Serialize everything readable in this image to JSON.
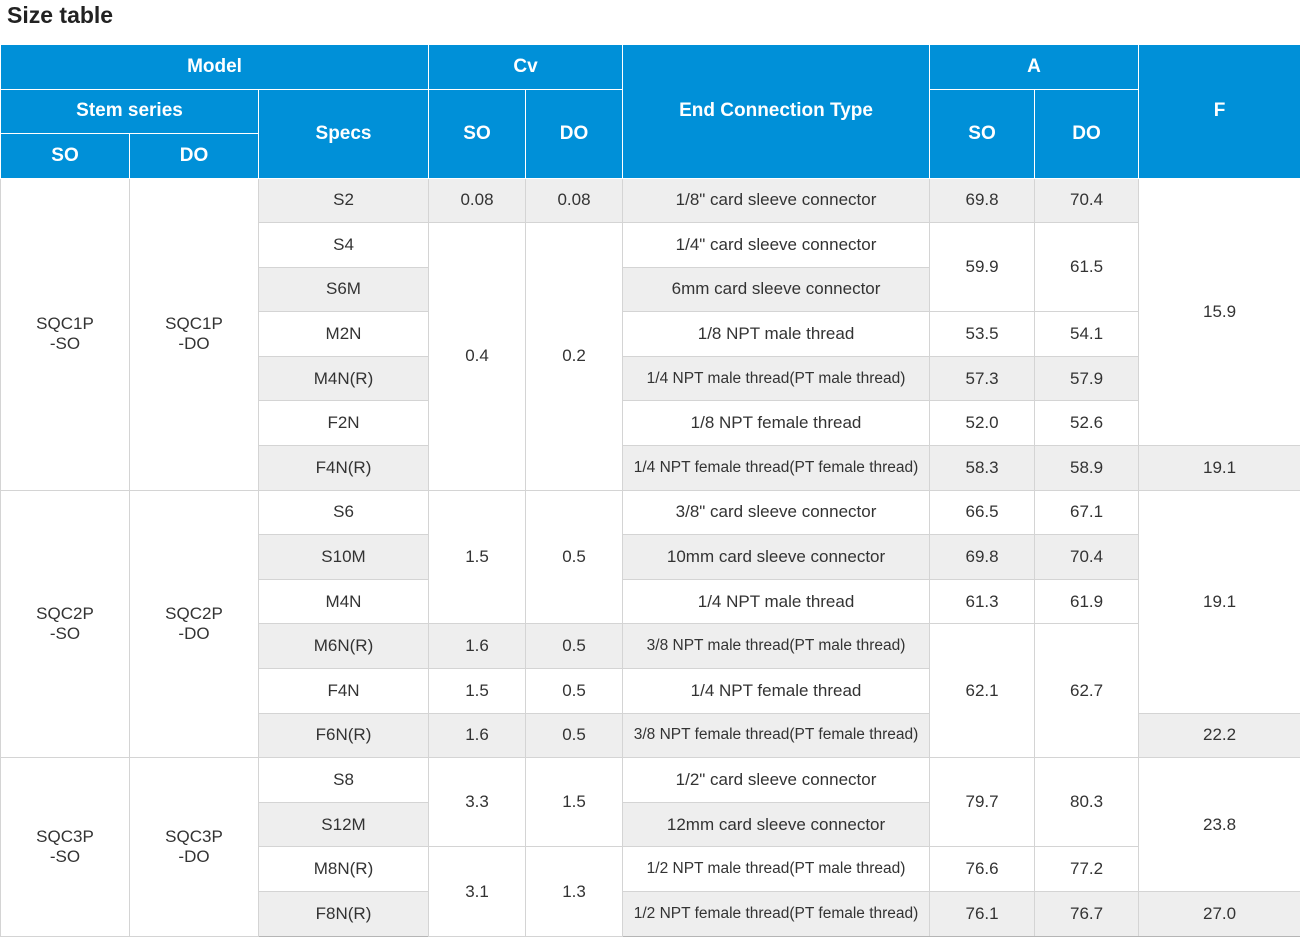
{
  "title": "Size table",
  "header": {
    "model": "Model",
    "cv": "Cv",
    "end_connection_type": "End Connection Type",
    "a": "A",
    "f": "F",
    "stem_series": "Stem series",
    "specs": "Specs",
    "so": "SO",
    "do": "DO"
  },
  "groups": [
    {
      "so": "SQC1P\n-SO",
      "do": "SQC1P\n-DO",
      "rows": [
        {
          "spec": "S2",
          "cv_so": "0.08",
          "cv_do": "0.08",
          "end": "1/8\" card sleeve connector",
          "a_so": "69.8",
          "a_do": "70.4",
          "f": "15.9"
        },
        {
          "spec": "S4",
          "cv_so": "0.4",
          "cv_do": "0.2",
          "end": "1/4\" card sleeve connector",
          "a_so": "59.9",
          "a_do": "61.5"
        },
        {
          "spec": "S6M",
          "end": "6mm card sleeve connector"
        },
        {
          "spec": "M2N",
          "end": "1/8 NPT male thread",
          "a_so": "53.5",
          "a_do": "54.1"
        },
        {
          "spec": "M4N(R)",
          "end": "1/4 NPT male thread(PT male thread)",
          "a_so": "57.3",
          "a_do": "57.9"
        },
        {
          "spec": "F2N",
          "end": "1/8 NPT female thread",
          "a_so": "52.0",
          "a_do": "52.6"
        },
        {
          "spec": "F4N(R)",
          "end": "1/4 NPT female thread(PT female thread)",
          "a_so": "58.3",
          "a_do": "58.9",
          "f": "19.1"
        }
      ]
    },
    {
      "so": "SQC2P\n-SO",
      "do": "SQC2P\n-DO",
      "rows": [
        {
          "spec": "S6",
          "cv_so": "1.5",
          "cv_do": "0.5",
          "end": "3/8\" card sleeve connector",
          "a_so": "66.5",
          "a_do": "67.1",
          "f": "19.1"
        },
        {
          "spec": "S10M",
          "end": "10mm card sleeve connector",
          "a_so": "69.8",
          "a_do": "70.4"
        },
        {
          "spec": "M4N",
          "end": "1/4 NPT male thread",
          "a_so": "61.3",
          "a_do": "61.9"
        },
        {
          "spec": "M6N(R)",
          "cv_so": "1.6",
          "cv_do": "0.5",
          "end": "3/8 NPT male thread(PT male thread)",
          "a_so": "62.1",
          "a_do": "62.7"
        },
        {
          "spec": "F4N",
          "cv_so": "1.5",
          "cv_do": "0.5",
          "end": "1/4 NPT female thread"
        },
        {
          "spec": "F6N(R)",
          "cv_so": "1.6",
          "cv_do": "0.5",
          "end": "3/8 NPT female thread(PT female thread)",
          "f": "22.2"
        }
      ]
    },
    {
      "so": "SQC3P\n-SO",
      "do": "SQC3P\n-DO",
      "rows": [
        {
          "spec": "S8",
          "cv_so": "3.3",
          "cv_do": "1.5",
          "end": "1/2\" card sleeve connector",
          "a_so": "79.7",
          "a_do": "80.3",
          "f": "23.8"
        },
        {
          "spec": "S12M",
          "end": "12mm card sleeve connector"
        },
        {
          "spec": "M8N(R)",
          "cv_so": "3.1",
          "cv_do": "1.3",
          "end": "1/2 NPT male thread(PT male thread)",
          "a_so": "76.6",
          "a_do": "77.2"
        },
        {
          "spec": "F8N(R)",
          "end": "1/2 NPT female thread(PT female thread)",
          "a_so": "76.1",
          "a_do": "76.7",
          "f": "27.0"
        }
      ]
    }
  ]
}
